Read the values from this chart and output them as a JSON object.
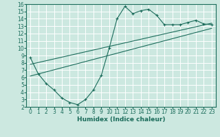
{
  "title": "",
  "xlabel": "Humidex (Indice chaleur)",
  "ylabel": "",
  "xlim": [
    -0.5,
    23.5
  ],
  "ylim": [
    2,
    16
  ],
  "xticks": [
    0,
    1,
    2,
    3,
    4,
    5,
    6,
    7,
    8,
    9,
    10,
    11,
    12,
    13,
    14,
    15,
    16,
    17,
    18,
    19,
    20,
    21,
    22,
    23
  ],
  "yticks": [
    2,
    3,
    4,
    5,
    6,
    7,
    8,
    9,
    10,
    11,
    12,
    13,
    14,
    15,
    16
  ],
  "background_color": "#cce8e0",
  "grid_color": "#ffffff",
  "line_color": "#1a6b5a",
  "curve_x": [
    0,
    1,
    2,
    3,
    4,
    5,
    6,
    7,
    8,
    9,
    10,
    11,
    12,
    13,
    14,
    15,
    16,
    17,
    18,
    19,
    20,
    21,
    22,
    23
  ],
  "curve_y": [
    8.7,
    6.5,
    5.2,
    4.3,
    3.2,
    2.6,
    2.3,
    3.0,
    4.3,
    6.3,
    10.0,
    14.0,
    15.7,
    14.7,
    15.1,
    15.3,
    14.5,
    13.2,
    13.2,
    13.2,
    13.5,
    13.8,
    13.3,
    13.2
  ],
  "line1_x": [
    0,
    23
  ],
  "line1_y": [
    6.2,
    12.7
  ],
  "line2_x": [
    0,
    23
  ],
  "line2_y": [
    7.8,
    13.4
  ],
  "marker_size": 3.0,
  "tick_fontsize": 5.5,
  "xlabel_fontsize": 6.5
}
